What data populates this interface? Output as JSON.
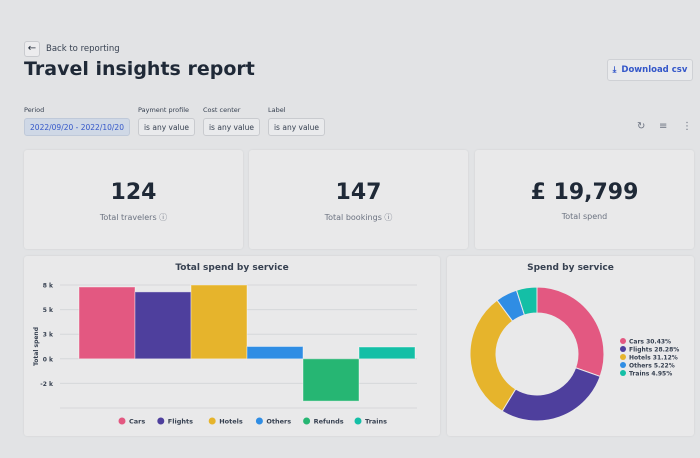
{
  "header": {
    "back_label": "Back to reporting",
    "title": "Travel insights report",
    "download_label": "Download csv"
  },
  "icons": {
    "back": "arrow-left-icon",
    "download": "download-icon",
    "refresh": "refresh-icon",
    "filter": "filter-icon",
    "more": "more-vertical-icon",
    "info": "info-icon"
  },
  "filters": [
    {
      "label": "Period",
      "value": "2022/09/20 - 2022/10/20",
      "selected": true
    },
    {
      "label": "Payment profile",
      "value": "is any value"
    },
    {
      "label": "Cost center",
      "value": "is any value"
    },
    {
      "label": "Label",
      "value": "is any value"
    }
  ],
  "kpis": [
    {
      "value": "124",
      "label": "Total travelers",
      "info": true
    },
    {
      "value": "147",
      "label": "Total bookings",
      "info": true
    },
    {
      "value": "£ 19,799",
      "label": "Total spend",
      "info": false
    }
  ],
  "colors": {
    "Cars": "#e35881",
    "Flights": "#4e3f9d",
    "Hotels": "#e6b42c",
    "Others": "#2f8de4",
    "Refunds": "#26b673",
    "Trains": "#14bfa6",
    "accent": "#3457c9"
  },
  "chart_data": [
    {
      "type": "bar",
      "title": "Total spend by service",
      "ylabel": "Total spend",
      "xlabel": "",
      "categories": [
        "Cars",
        "Flights",
        "Hotels",
        "Others",
        "Refunds",
        "Trains"
      ],
      "values": [
        7300,
        6800,
        7500,
        1250,
        -4300,
        1200
      ],
      "yticks": [
        {
          "v": 7500,
          "label": "8 k"
        },
        {
          "v": 5000,
          "label": "5 k"
        },
        {
          "v": 2500,
          "label": "3 k"
        },
        {
          "v": 0,
          "label": "0 k"
        },
        {
          "v": -2500,
          "label": "-2 k"
        }
      ],
      "ylim": [
        -5000,
        7500
      ],
      "grid": true,
      "legend": "bottom",
      "legend_entries": [
        "Cars",
        "Flights",
        "Hotels",
        "Others",
        "Refunds",
        "Trains"
      ]
    },
    {
      "type": "pie",
      "title": "Spend by service",
      "donut": true,
      "legend": "right",
      "categories": [
        "Cars",
        "Flights",
        "Hotels",
        "Others",
        "Trains"
      ],
      "values": [
        30.43,
        28.28,
        31.12,
        5.22,
        4.95
      ],
      "legend_entries": [
        "Cars 30.43%",
        "Flights 28.28%",
        "Hotels 31.12%",
        "Others 5.22%",
        "Trains 4.95%"
      ]
    }
  ]
}
